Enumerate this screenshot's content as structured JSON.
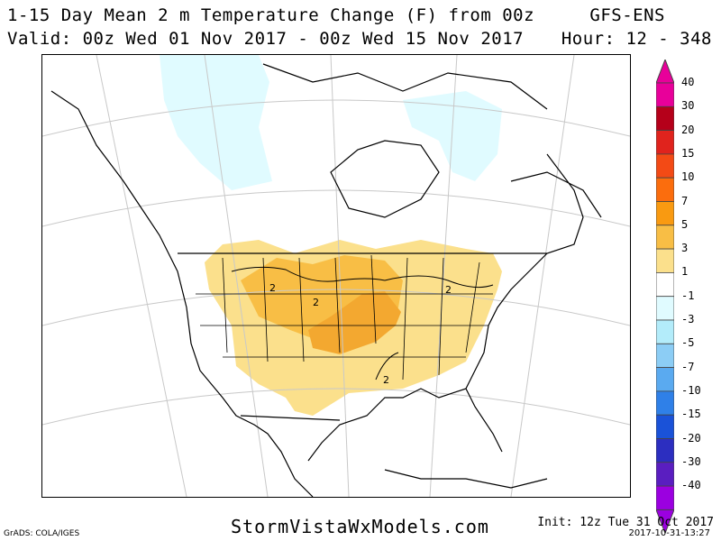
{
  "header": {
    "title": "1-15 Day Mean 2 m Temperature Change (F) from 00z",
    "model": "GFS-ENS",
    "valid": "Valid: 00z Wed 01 Nov 2017 - 00z Wed 15 Nov 2017",
    "hour": "Hour: 12 - 348"
  },
  "colorbar": {
    "labels": [
      "40",
      "30",
      "20",
      "15",
      "10",
      "7",
      "5",
      "3",
      "1",
      "-1",
      "-3",
      "-5",
      "-7",
      "-10",
      "-15",
      "-20",
      "-30",
      "-40"
    ],
    "colors": [
      "#e8009a",
      "#b5001a",
      "#e0231d",
      "#f34a15",
      "#fb6d0d",
      "#f99a11",
      "#f8be45",
      "#fbe08c",
      "#ffffff",
      "#e0fbff",
      "#b3ecfa",
      "#8ccdf5",
      "#5aaaf0",
      "#2f80e8",
      "#1a52d8",
      "#2c2ec0",
      "#5a1ec0",
      "#9b00e0"
    ]
  },
  "map": {
    "contour_labels": [
      "2",
      "2",
      "2",
      "2"
    ],
    "colors": {
      "warm_light": "#fbe08c",
      "warm_mid": "#f8be45",
      "warm_strong": "#f3a830",
      "cool_light": "#e0fbff"
    }
  },
  "footer": {
    "site": "StormVistaWxModels.com",
    "grads": "GrADS: COLA/IGES",
    "init": "Init: 12z Tue 31 Oct 2017",
    "stamp": "2017-10-31-13:27"
  }
}
